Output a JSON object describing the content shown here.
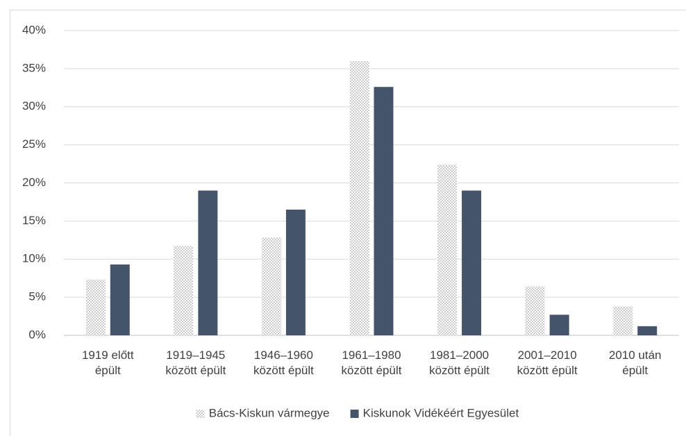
{
  "chart_data": {
    "type": "bar",
    "categories": [
      "1919 előtt épült",
      "1919–1945 között épült",
      "1946–1960 között épült",
      "1961–1980 között épült",
      "1981–2000 között épült",
      "2001–2010 között épült",
      "2010 után épült"
    ],
    "series": [
      {
        "name": "Bács-Kiskun vármegye",
        "color": "#8c8c8c",
        "pattern": "dotted",
        "values": [
          7.3,
          11.7,
          12.8,
          36.0,
          22.4,
          6.4,
          3.8
        ]
      },
      {
        "name": "Kiskunok Vidékéért Egyesület",
        "color": "#44546a",
        "values": [
          9.3,
          19.0,
          16.5,
          32.6,
          19.0,
          2.7,
          1.2
        ]
      }
    ],
    "ylim": [
      0,
      40
    ],
    "yticks": [
      {
        "value": 0,
        "label": "0%"
      },
      {
        "value": 5,
        "label": "5%"
      },
      {
        "value": 10,
        "label": "10%"
      },
      {
        "value": 15,
        "label": "15%"
      },
      {
        "value": 20,
        "label": "20%"
      },
      {
        "value": 25,
        "label": "25%"
      },
      {
        "value": 30,
        "label": "30%"
      },
      {
        "value": 35,
        "label": "35%"
      },
      {
        "value": 40,
        "label": "40%"
      }
    ],
    "grid": true,
    "legend": "bottom"
  }
}
